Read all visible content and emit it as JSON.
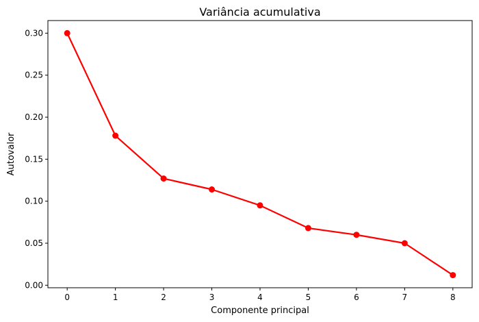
{
  "chart_data": {
    "type": "line",
    "title": "Variância acumulativa",
    "xlabel": "Componente principal",
    "ylabel": "Autovalor",
    "x": [
      0,
      1,
      2,
      3,
      4,
      5,
      6,
      7,
      8
    ],
    "series": [
      {
        "values": [
          0.3,
          0.178,
          0.127,
          0.114,
          0.095,
          0.068,
          0.06,
          0.05,
          0.012
        ],
        "color": "#ff0000",
        "marker": "circle"
      }
    ],
    "xlim": [
      -0.4,
      8.4
    ],
    "ylim": [
      -0.003,
      0.315
    ],
    "xticks": [
      0,
      1,
      2,
      3,
      4,
      5,
      6,
      7,
      8
    ],
    "yticks": [
      0.0,
      0.05,
      0.1,
      0.15,
      0.2,
      0.25,
      0.3
    ],
    "ytick_labels": [
      "0.00",
      "0.05",
      "0.10",
      "0.15",
      "0.20",
      "0.25",
      "0.30"
    ],
    "grid": false,
    "legend": "none"
  }
}
